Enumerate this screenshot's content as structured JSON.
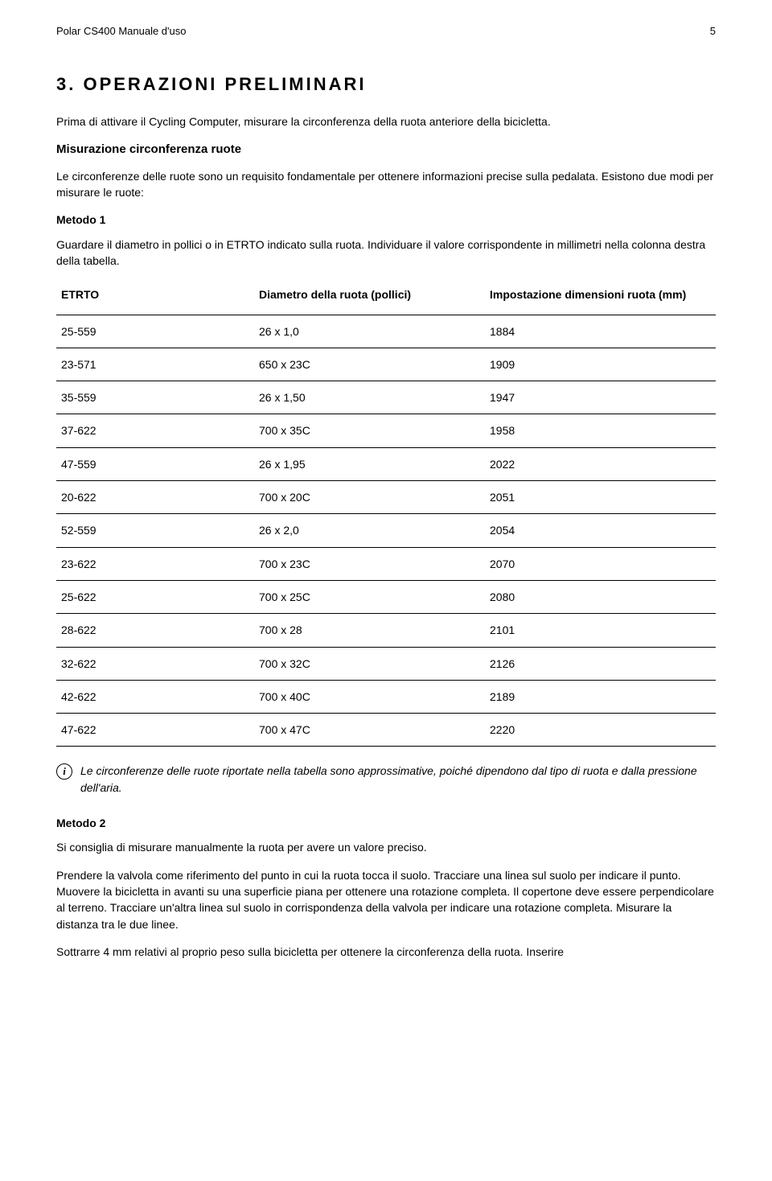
{
  "header": {
    "doc_title": "Polar CS400 Manuale d'uso",
    "page_number": "5"
  },
  "chapter": {
    "heading": "3. OPERAZIONI PRELIMINARI",
    "intro": "Prima di attivare il Cycling Computer, misurare la circonferenza della ruota anteriore della bicicletta."
  },
  "section": {
    "title": "Misurazione circonferenza ruote",
    "para1": "Le circonferenze delle ruote sono un requisito fondamentale per ottenere informazioni precise sulla pedalata. Esistono due modi per misurare le ruote:"
  },
  "method1": {
    "label": "Metodo 1",
    "para": "Guardare il diametro in pollici o in ETRTO indicato sulla ruota. Individuare il valore corrispondente in millimetri nella colonna destra della tabella."
  },
  "table": {
    "columns": [
      "ETRTO",
      "Diametro della ruota (pollici)",
      "Impostazione dimensioni ruota (mm)"
    ],
    "rows": [
      [
        "25-559",
        "26 x 1,0",
        "1884"
      ],
      [
        "23-571",
        "650 x 23C",
        "1909"
      ],
      [
        "35-559",
        "26 x 1,50",
        "1947"
      ],
      [
        "37-622",
        "700 x 35C",
        "1958"
      ],
      [
        "47-559",
        "26 x 1,95",
        "2022"
      ],
      [
        "20-622",
        "700 x 20C",
        "2051"
      ],
      [
        "52-559",
        "26 x 2,0",
        "2054"
      ],
      [
        "23-622",
        "700 x 23C",
        "2070"
      ],
      [
        "25-622",
        "700 x 25C",
        "2080"
      ],
      [
        "28-622",
        "700 x 28",
        "2101"
      ],
      [
        "32-622",
        "700 x 32C",
        "2126"
      ],
      [
        "42-622",
        "700 x 40C",
        "2189"
      ],
      [
        "47-622",
        "700 x 47C",
        "2220"
      ]
    ]
  },
  "note": {
    "icon_label": "i",
    "text": "Le circonferenze delle ruote riportate nella tabella sono approssimative, poiché dipendono dal tipo di ruota e dalla pressione dell'aria."
  },
  "method2": {
    "label": "Metodo 2",
    "para1": "Si consiglia di misurare manualmente la ruota per avere un valore preciso.",
    "para2": "Prendere la valvola come riferimento del punto in cui la ruota tocca il suolo. Tracciare una linea sul suolo per indicare il punto. Muovere la bicicletta in avanti su una superficie piana per ottenere una rotazione completa. Il copertone deve essere perpendicolare al terreno. Tracciare un'altra linea sul suolo in corrispondenza della valvola per indicare una rotazione completa. Misurare la distanza tra le due linee.",
    "para3": "Sottrarre 4 mm relativi al proprio peso sulla bicicletta per ottenere la circonferenza della ruota. Inserire"
  }
}
